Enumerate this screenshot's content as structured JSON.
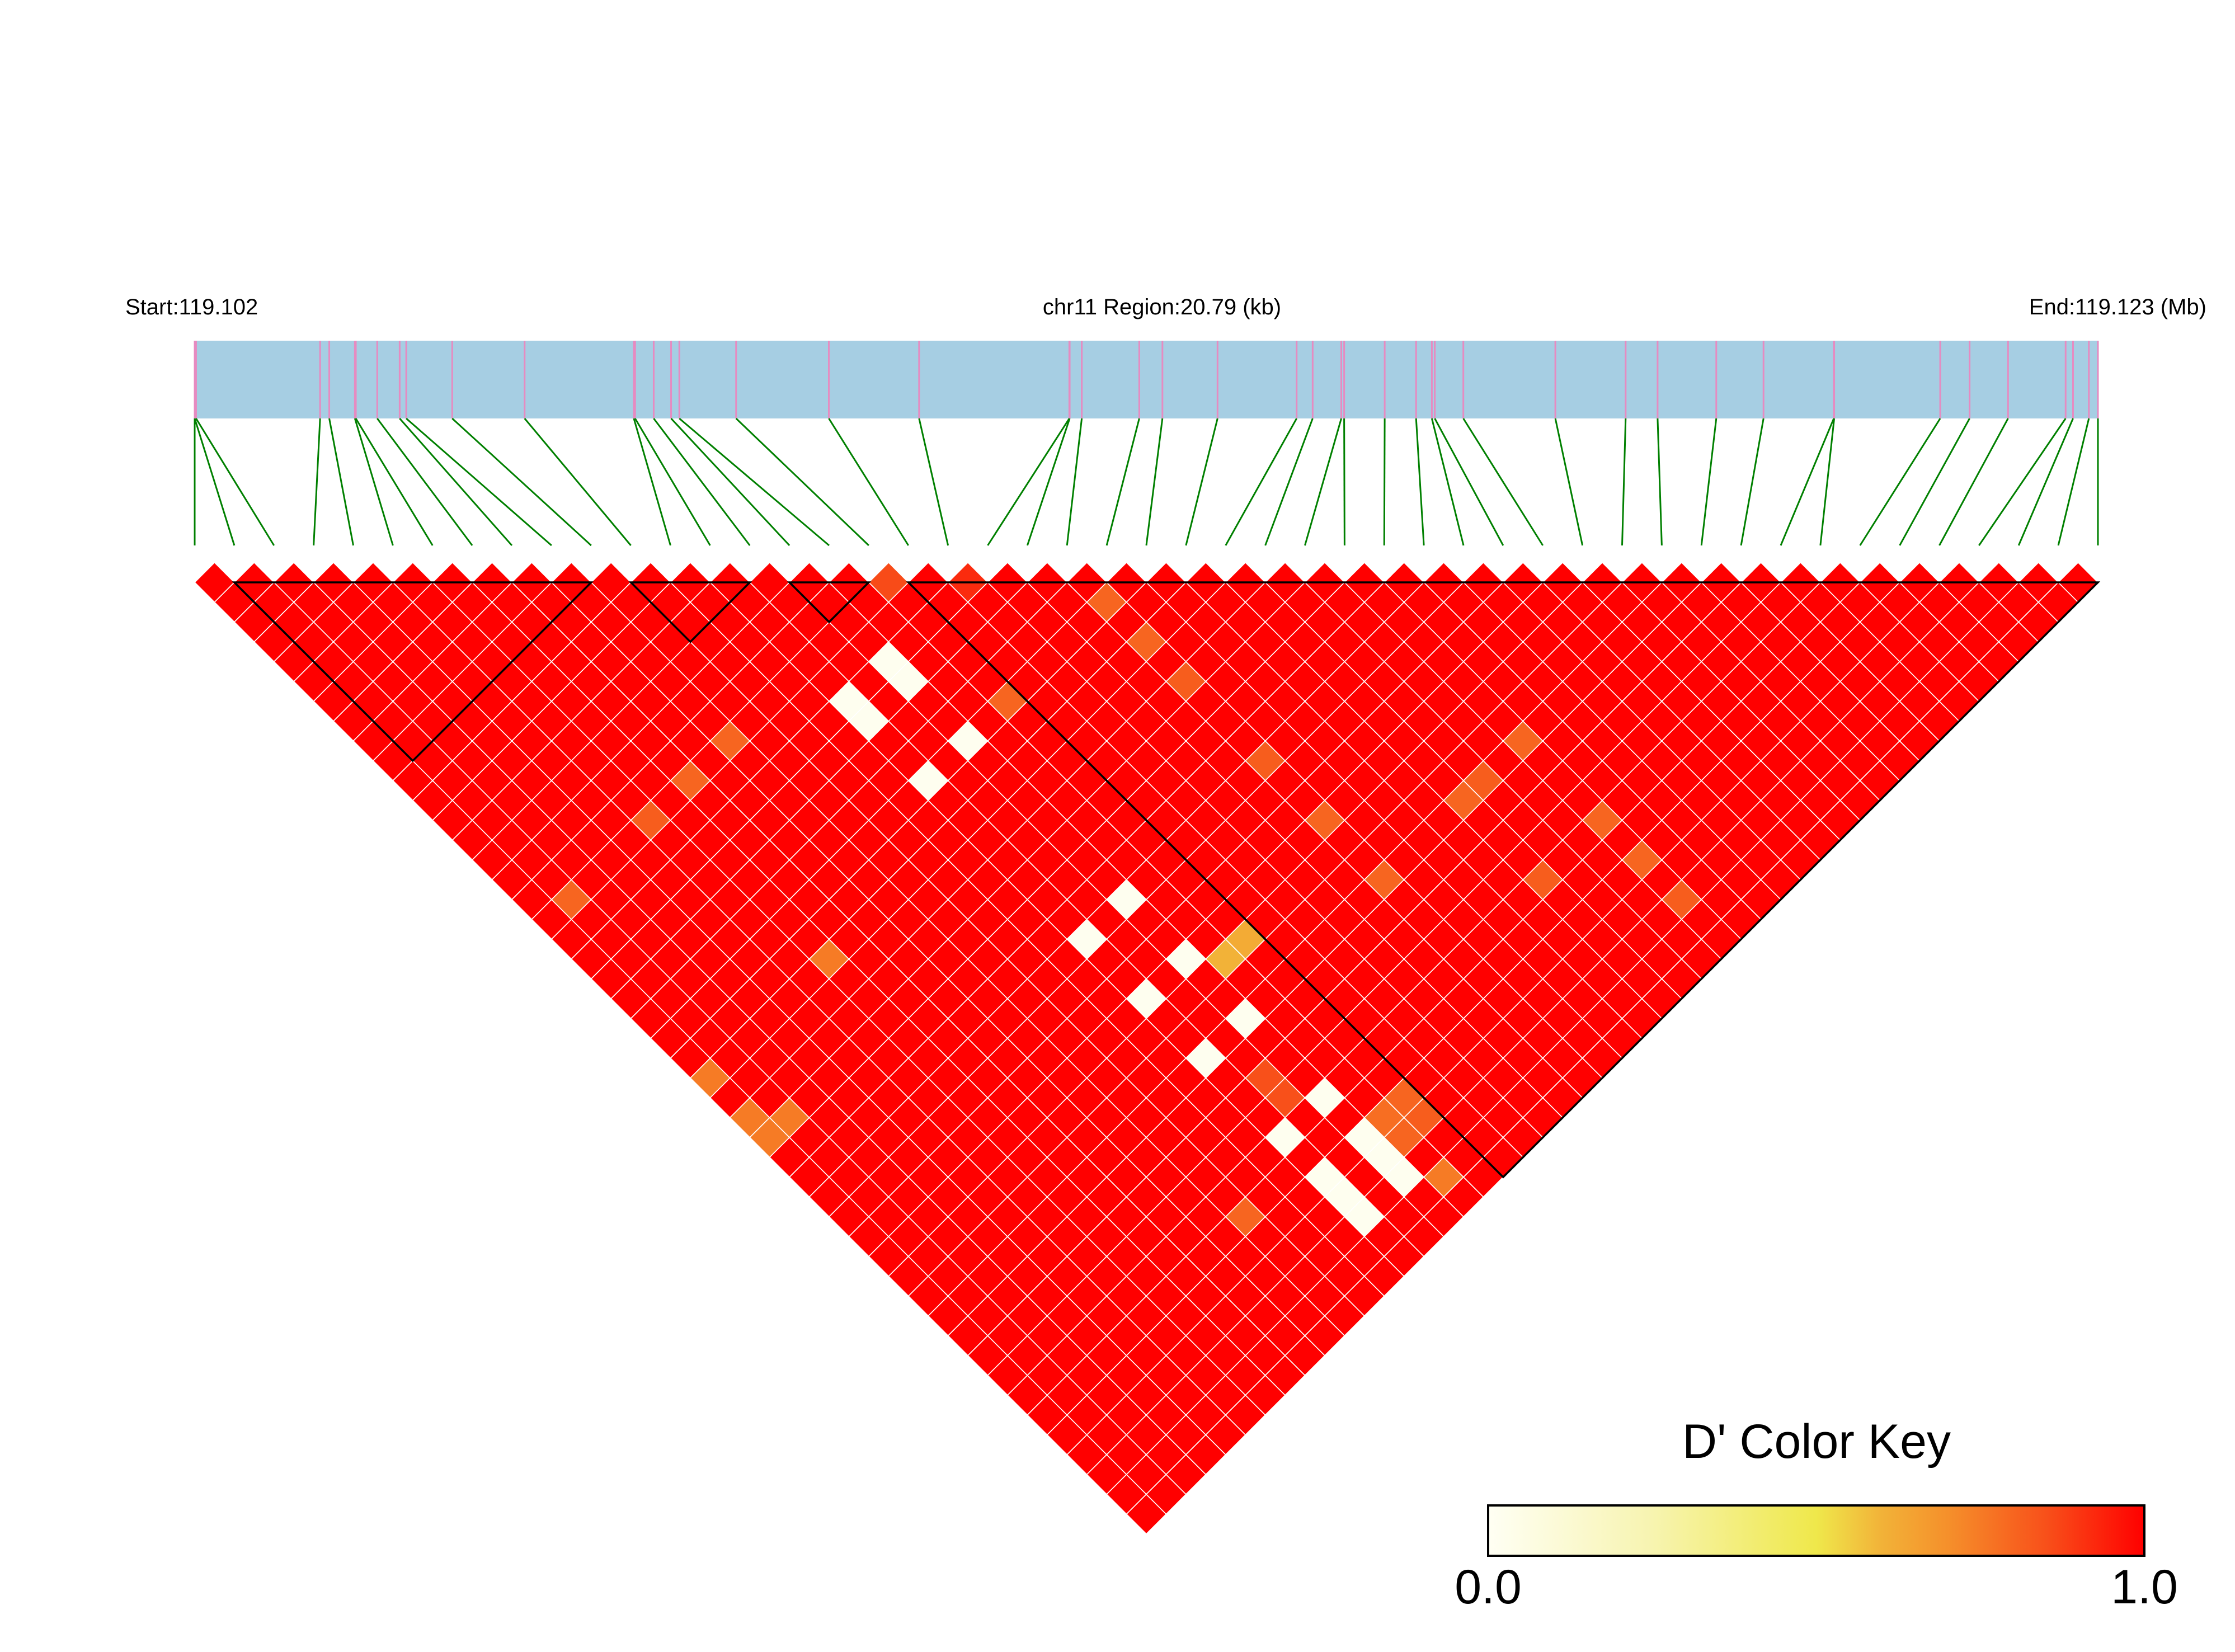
{
  "header": {
    "start_label": "Start:119.102",
    "region_label": "chr11 Region:20.79 (kb)",
    "end_label": "End:119.123 (Mb)"
  },
  "color_key": {
    "title": "D' Color Key",
    "min_label": "0.0",
    "max_label": "1.0"
  },
  "colors": {
    "region_bar": "#A6CEE3",
    "snp_tick": "#E68BC1",
    "connector": "#008000",
    "block_outline": "#000000",
    "cell_border": "#FFFFFF",
    "scale": [
      {
        "v": 0.0,
        "c": "#FFFFF4"
      },
      {
        "v": 0.25,
        "c": "#F7F4B0"
      },
      {
        "v": 0.5,
        "c": "#EFE84B"
      },
      {
        "v": 0.6,
        "c": "#F2B238"
      },
      {
        "v": 0.7,
        "c": "#F5902B"
      },
      {
        "v": 0.85,
        "c": "#F8501A"
      },
      {
        "v": 1.0,
        "c": "#FF0000"
      }
    ]
  },
  "chart_data": {
    "type": "heatmap",
    "subtype": "LD triangle (rotated)",
    "title": "",
    "metric": "D'",
    "chromosome": "chr11",
    "region_start_mb": 119.102,
    "region_end_mb": 119.123,
    "region_length_kb": 20.79,
    "n_snps": 49,
    "snp_positions_kb": [
      0.0,
      0.0,
      0.015,
      1.37,
      1.47,
      1.75,
      1.76,
      1.994,
      2.239,
      2.311,
      2.813,
      3.604,
      4.797,
      4.811,
      5.014,
      5.204,
      5.294,
      5.914,
      6.927,
      7.913,
      9.554,
      9.558,
      9.69,
      10.318,
      10.571,
      11.173,
      12.037,
      12.212,
      12.525,
      12.556,
      12.999,
      13.342,
      13.514,
      13.546,
      13.858,
      14.863,
      15.631,
      15.98,
      16.621,
      17.137,
      17.905,
      17.909,
      19.067,
      19.388,
      19.808,
      20.437,
      20.518,
      20.691,
      20.79
    ],
    "value_range": [
      0,
      1
    ],
    "default_value": 1.0,
    "values_note": "pairs [snp_i, snp_j, D'] (0-indexed); all other pairs ≈ 1.0",
    "values": [
      [
        15,
        20,
        0.02
      ],
      [
        15,
        21,
        0.02
      ],
      [
        13,
        20,
        0.02
      ],
      [
        13,
        21,
        0.02
      ],
      [
        15,
        24,
        0.02
      ],
      [
        13,
        24,
        0.02
      ],
      [
        15,
        32,
        0.02
      ],
      [
        13,
        32,
        0.02
      ],
      [
        15,
        35,
        0.02
      ],
      [
        13,
        35,
        0.02
      ],
      [
        15,
        38,
        0.02
      ],
      [
        13,
        38,
        0.02
      ],
      [
        15,
        42,
        0.02
      ],
      [
        13,
        42,
        0.02
      ],
      [
        15,
        44,
        0.02
      ],
      [
        15,
        45,
        0.02
      ],
      [
        15,
        46,
        0.02
      ],
      [
        13,
        44,
        0.02
      ],
      [
        13,
        45,
        0.02
      ],
      [
        13,
        46,
        0.02
      ],
      [
        16,
        36,
        0.6
      ],
      [
        17,
        36,
        0.62
      ],
      [
        17,
        18,
        0.86
      ],
      [
        19,
        20,
        0.92
      ],
      [
        22,
        24,
        0.8
      ],
      [
        22,
        26,
        0.8
      ],
      [
        22,
        28,
        0.82
      ],
      [
        22,
        32,
        0.82
      ],
      [
        22,
        35,
        0.8
      ],
      [
        22,
        38,
        0.8
      ],
      [
        26,
        38,
        0.8
      ],
      [
        27,
        38,
        0.82
      ],
      [
        29,
        38,
        0.8
      ],
      [
        26,
        42,
        0.82
      ],
      [
        29,
        42,
        0.8
      ],
      [
        29,
        44,
        0.8
      ],
      [
        29,
        46,
        0.82
      ],
      [
        17,
        24,
        0.8
      ],
      [
        10,
        43,
        0.8
      ],
      [
        16,
        47,
        0.75
      ],
      [
        0,
        26,
        0.75
      ],
      [
        0,
        28,
        0.75
      ],
      [
        0,
        29,
        0.75
      ],
      [
        1,
        29,
        0.75
      ],
      [
        6,
        26,
        0.75
      ],
      [
        1,
        18,
        0.8
      ],
      [
        5,
        18,
        0.82
      ],
      [
        7,
        18,
        0.8
      ],
      [
        9,
        18,
        0.8
      ],
      [
        16,
        44,
        0.78
      ],
      [
        16,
        45,
        0.8
      ],
      [
        17,
        44,
        0.8
      ],
      [
        17,
        45,
        0.82
      ],
      [
        14,
        40,
        0.85
      ],
      [
        14,
        41,
        0.85
      ]
    ],
    "blocks": [
      [
        1,
        10
      ],
      [
        11,
        14
      ],
      [
        15,
        17
      ],
      [
        18,
        48
      ]
    ],
    "legend": {
      "title": "D' Color Key",
      "min": 0.0,
      "max": 1.0,
      "placement": "bottom-right"
    }
  }
}
